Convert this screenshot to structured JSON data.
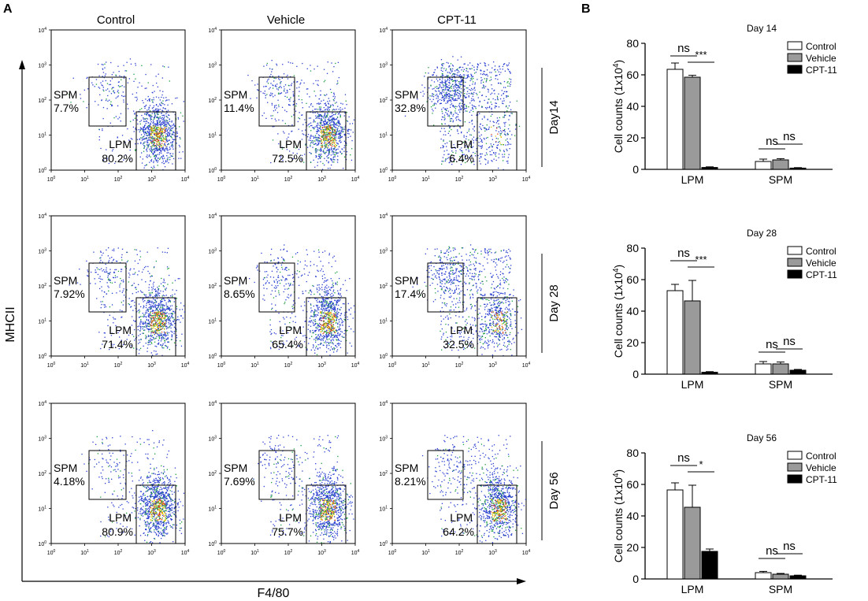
{
  "panel_labels": {
    "a": "A",
    "b": "B"
  },
  "flow": {
    "column_titles": [
      "Control",
      "Vehicle",
      "CPT-11"
    ],
    "row_labels": [
      "Day14",
      "Day 28",
      "Day 56"
    ],
    "y_axis_label": "MHCII",
    "x_axis_label": "F4/80",
    "x_tick_bases": [
      "10",
      "10",
      "10",
      "10",
      "10"
    ],
    "x_tick_exps": [
      "0",
      "1",
      "2",
      "3",
      "4"
    ],
    "y_tick_bases": [
      "10",
      "10",
      "10",
      "10",
      "10"
    ],
    "y_tick_exps": [
      "0",
      "1",
      "2",
      "3",
      "4"
    ],
    "gate_labels": {
      "spm": "SPM",
      "lpm": "LPM"
    },
    "plots": [
      [
        {
          "spm": "7.7%",
          "lpm": "80.2%"
        },
        {
          "spm": "11.4%",
          "lpm": "72.5%"
        },
        {
          "spm": "32.8%",
          "lpm": "6.4%"
        }
      ],
      [
        {
          "spm": "7.92%",
          "lpm": "71.4%"
        },
        {
          "spm": "8.65%",
          "lpm": "65.4%"
        },
        {
          "spm": "17.4%",
          "lpm": "32.5%"
        }
      ],
      [
        {
          "spm": "4.18%",
          "lpm": "80.9%"
        },
        {
          "spm": "7.69%",
          "lpm": "75.7%"
        },
        {
          "spm": "8.21%",
          "lpm": "64.2%"
        }
      ]
    ]
  },
  "chart_data": [
    {
      "type": "bar",
      "title": "Day 14",
      "ylabel_prefix": "Cell counts (1x10",
      "ylabel_exp": "4",
      "ylabel_suffix": ")",
      "categories": [
        "LPM",
        "SPM"
      ],
      "ylim": [
        0,
        80
      ],
      "yticks": [
        "0",
        "20",
        "40",
        "60",
        "80"
      ],
      "series": [
        {
          "name": "Control",
          "values": [
            63.5,
            5.0
          ],
          "errors": [
            4.0,
            1.5
          ],
          "color": "#ffffff"
        },
        {
          "name": "Vehicle",
          "values": [
            58.5,
            6.0
          ],
          "errors": [
            1.2,
            0.8
          ],
          "color": "#9a9a9a"
        },
        {
          "name": "CPT-11",
          "values": [
            1.2,
            0.8
          ],
          "errors": [
            0.4,
            0.3
          ],
          "color": "#000000"
        }
      ],
      "significance": [
        {
          "label": "ns",
          "from": 0,
          "to": 1,
          "group": 0
        },
        {
          "label": "***",
          "from": 1,
          "to": 2,
          "group": 0
        },
        {
          "label": "ns",
          "from": 0,
          "to": 1,
          "group": 1
        },
        {
          "label": "ns",
          "from": 1,
          "to": 2,
          "group": 1
        }
      ]
    },
    {
      "type": "bar",
      "title": "Day 28",
      "ylabel_prefix": "Cell counts (1x10",
      "ylabel_exp": "4",
      "ylabel_suffix": ")",
      "categories": [
        "LPM",
        "SPM"
      ],
      "ylim": [
        0,
        80
      ],
      "yticks": [
        "0",
        "20",
        "40",
        "60",
        "80"
      ],
      "series": [
        {
          "name": "Control",
          "values": [
            53.0,
            6.5
          ],
          "errors": [
            4.0,
            1.5
          ],
          "color": "#ffffff"
        },
        {
          "name": "Vehicle",
          "values": [
            46.5,
            6.5
          ],
          "errors": [
            13.0,
            1.2
          ],
          "color": "#9a9a9a"
        },
        {
          "name": "CPT-11",
          "values": [
            1.2,
            2.5
          ],
          "errors": [
            0.4,
            0.5
          ],
          "color": "#000000"
        }
      ],
      "significance": [
        {
          "label": "ns",
          "from": 0,
          "to": 1,
          "group": 0
        },
        {
          "label": "***",
          "from": 1,
          "to": 2,
          "group": 0
        },
        {
          "label": "ns",
          "from": 0,
          "to": 1,
          "group": 1
        },
        {
          "label": "ns",
          "from": 1,
          "to": 2,
          "group": 1
        }
      ]
    },
    {
      "type": "bar",
      "title": "Day 56",
      "ylabel_prefix": "Cell counts (1x10",
      "ylabel_exp": "4",
      "ylabel_suffix": ")",
      "categories": [
        "LPM",
        "SPM"
      ],
      "ylim": [
        0,
        80
      ],
      "yticks": [
        "0",
        "20",
        "40",
        "60",
        "80"
      ],
      "series": [
        {
          "name": "Control",
          "values": [
            56.5,
            4.0
          ],
          "errors": [
            4.5,
            0.8
          ],
          "color": "#ffffff"
        },
        {
          "name": "Vehicle",
          "values": [
            45.5,
            3.0
          ],
          "errors": [
            14.0,
            0.5
          ],
          "color": "#9a9a9a"
        },
        {
          "name": "CPT-11",
          "values": [
            17.5,
            2.0
          ],
          "errors": [
            1.5,
            0.4
          ],
          "color": "#000000"
        }
      ],
      "significance": [
        {
          "label": "ns",
          "from": 0,
          "to": 1,
          "group": 0
        },
        {
          "label": "*",
          "from": 1,
          "to": 2,
          "group": 0
        },
        {
          "label": "ns",
          "from": 0,
          "to": 1,
          "group": 1
        },
        {
          "label": "ns",
          "from": 1,
          "to": 2,
          "group": 1
        }
      ]
    }
  ]
}
